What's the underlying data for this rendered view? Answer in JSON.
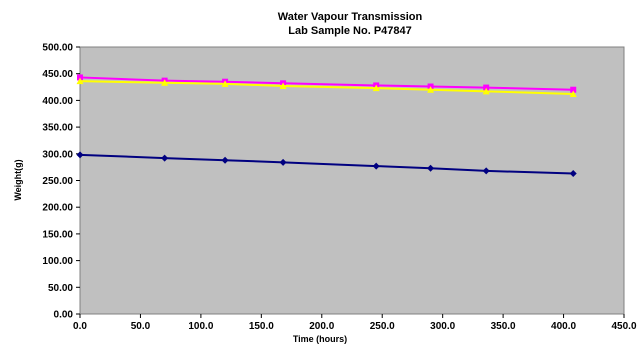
{
  "chart_data": {
    "type": "line",
    "title": "Water Vapour Transmission",
    "subtitle": "Lab Sample No. P47847",
    "xlabel": "Time (hours)",
    "ylabel": "Weight(g)",
    "xlim": [
      0,
      450
    ],
    "ylim": [
      0,
      500
    ],
    "x_ticks": [
      "0.0",
      "50.0",
      "100.0",
      "150.0",
      "200.0",
      "250.0",
      "300.0",
      "350.0",
      "400.0",
      "450.0"
    ],
    "y_ticks": [
      "0.00",
      "50.00",
      "100.00",
      "150.00",
      "200.00",
      "250.00",
      "300.00",
      "350.00",
      "400.00",
      "450.00",
      "500.00"
    ],
    "grid": false,
    "legend": "none",
    "plot_background": "#c0c0c0",
    "series": [
      {
        "color": "#ff00ff",
        "marker": "square",
        "x": [
          0,
          70,
          120,
          168,
          245,
          290,
          336,
          408
        ],
        "y": [
          443,
          437,
          435,
          432,
          428,
          426,
          424,
          420
        ]
      },
      {
        "color": "#ffff00",
        "marker": "triangle",
        "x": [
          0,
          70,
          120,
          168,
          245,
          290,
          336,
          408
        ],
        "y": [
          436,
          433,
          431,
          427,
          423,
          420,
          417,
          412
        ]
      },
      {
        "color": "#000080",
        "marker": "diamond",
        "x": [
          0,
          70,
          120,
          168,
          245,
          290,
          336,
          408
        ],
        "y": [
          298,
          292,
          288,
          284,
          277,
          273,
          268,
          263
        ]
      }
    ]
  }
}
